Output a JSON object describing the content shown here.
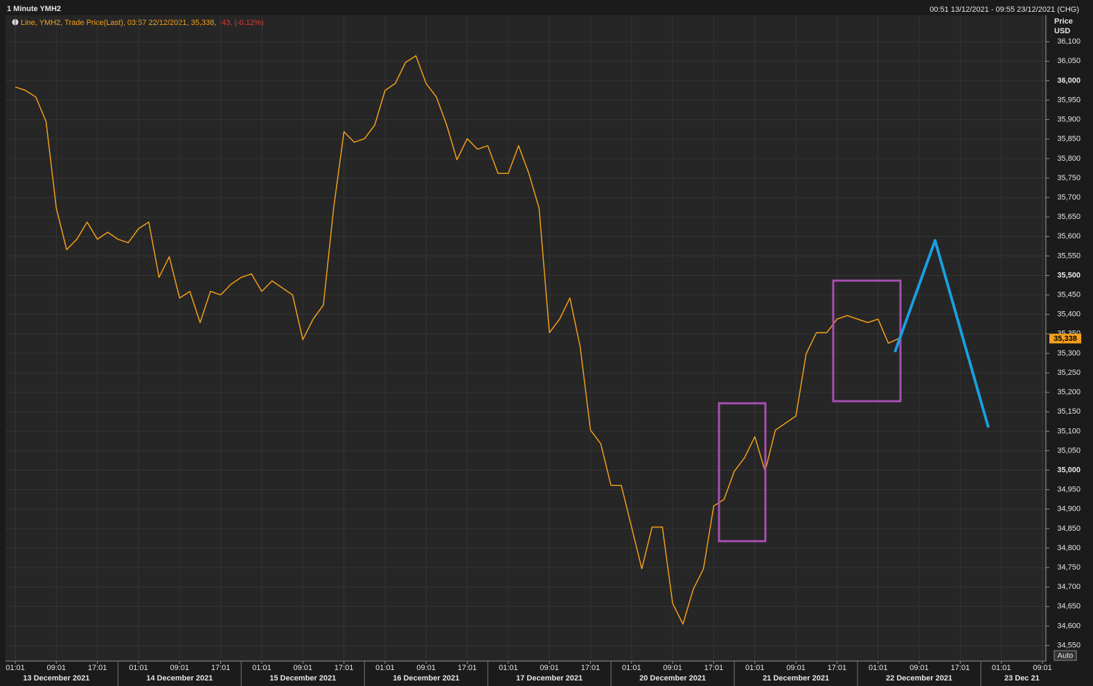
{
  "chart_data": {
    "type": "line",
    "title": "1 Minute YMH2",
    "range_text": "00:51 13/12/2021 - 09:55 23/12/2021 (CHG)",
    "legend": {
      "text": "Line, YMH2, Trade Price(Last), 03:57 22/12/2021, 35,338,",
      "change": "-43, (-0.12%)"
    },
    "axis_title": [
      "Price",
      "USD"
    ],
    "auto_label": "Auto",
    "last_price": {
      "value": 35338,
      "label": "35,338"
    },
    "days": [
      {
        "label": "13 December 2021",
        "ticks": [
          "01:01",
          "09:01",
          "17:01"
        ]
      },
      {
        "label": "14 December 2021",
        "ticks": [
          "01:01",
          "09:01",
          "17:01"
        ]
      },
      {
        "label": "15 December 2021",
        "ticks": [
          "01:01",
          "09:01",
          "17:01"
        ]
      },
      {
        "label": "16 December 2021",
        "ticks": [
          "01:01",
          "09:01",
          "17:01"
        ]
      },
      {
        "label": "17 December 2021",
        "ticks": [
          "01:01",
          "09:01",
          "17:01"
        ]
      },
      {
        "label": "20 December 2021",
        "ticks": [
          "01:01",
          "09:01",
          "17:01"
        ]
      },
      {
        "label": "21 December 2021",
        "ticks": [
          "01:01",
          "09:01",
          "17:01"
        ]
      },
      {
        "label": "22 December 2021",
        "ticks": [
          "01:01",
          "09:01",
          "17:01"
        ]
      },
      {
        "label": "23 Dec 21",
        "ticks": [
          "01:01",
          "09:01"
        ]
      }
    ],
    "series": [
      {
        "name": "YMH2",
        "color": "#f5a01a",
        "values": [
          35984,
          35975,
          35958,
          35895,
          35673,
          35566,
          35593,
          35637,
          35593,
          35611,
          35593,
          35584,
          35620,
          35637,
          35495,
          35548,
          35442,
          35459,
          35379,
          35459,
          35450,
          35477,
          35495,
          35504,
          35459,
          35486,
          35468,
          35450,
          35335,
          35388,
          35424,
          35673,
          35869,
          35842,
          35851,
          35886,
          35975,
          35993,
          36047,
          36064,
          35993,
          35958,
          35886,
          35797,
          35851,
          35824,
          35833,
          35762,
          35762,
          35833,
          35762,
          35673,
          35353,
          35388,
          35442,
          35317,
          35103,
          35068,
          34961,
          34961,
          34854,
          34747,
          34854,
          34854,
          34658,
          34605,
          34694,
          34747,
          34908,
          34925,
          34997,
          35032,
          35086,
          34997,
          35103,
          35121,
          35139,
          35299,
          35353,
          35353,
          35388,
          35397,
          35388,
          35379,
          35388,
          35326,
          35338
        ]
      }
    ],
    "ylim": [
      34510,
      36168
    ],
    "yticks": [
      {
        "value": 34550,
        "label": "34,550"
      },
      {
        "value": 34600,
        "label": "34,600"
      },
      {
        "value": 34650,
        "label": "34,650"
      },
      {
        "value": 34700,
        "label": "34,700"
      },
      {
        "value": 34750,
        "label": "34,750"
      },
      {
        "value": 34800,
        "label": "34,800"
      },
      {
        "value": 34850,
        "label": "34,850"
      },
      {
        "value": 34900,
        "label": "34,900"
      },
      {
        "value": 34950,
        "label": "34,950"
      },
      {
        "value": 35000,
        "label": "35,000"
      },
      {
        "value": 35050,
        "label": "35,050"
      },
      {
        "value": 35100,
        "label": "35,100"
      },
      {
        "value": 35150,
        "label": "35,150"
      },
      {
        "value": 35200,
        "label": "35,200"
      },
      {
        "value": 35250,
        "label": "35,250"
      },
      {
        "value": 35300,
        "label": "35,300"
      },
      {
        "value": 35350,
        "label": "35,350"
      },
      {
        "value": 35400,
        "label": "35,400"
      },
      {
        "value": 35450,
        "label": "35,450"
      },
      {
        "value": 35500,
        "label": "35,500"
      },
      {
        "value": 35550,
        "label": "35,550"
      },
      {
        "value": 35600,
        "label": "35,600"
      },
      {
        "value": 35650,
        "label": "35,650"
      },
      {
        "value": 35700,
        "label": "35,700"
      },
      {
        "value": 35750,
        "label": "35,750"
      },
      {
        "value": 35800,
        "label": "35,800"
      },
      {
        "value": 35850,
        "label": "35,850"
      },
      {
        "value": 35900,
        "label": "35,900"
      },
      {
        "value": 35950,
        "label": "35,950"
      },
      {
        "value": 36000,
        "label": "36,000"
      },
      {
        "value": 36050,
        "label": "36,050"
      },
      {
        "value": 36100,
        "label": "36,100"
      }
    ],
    "grid": true
  }
}
